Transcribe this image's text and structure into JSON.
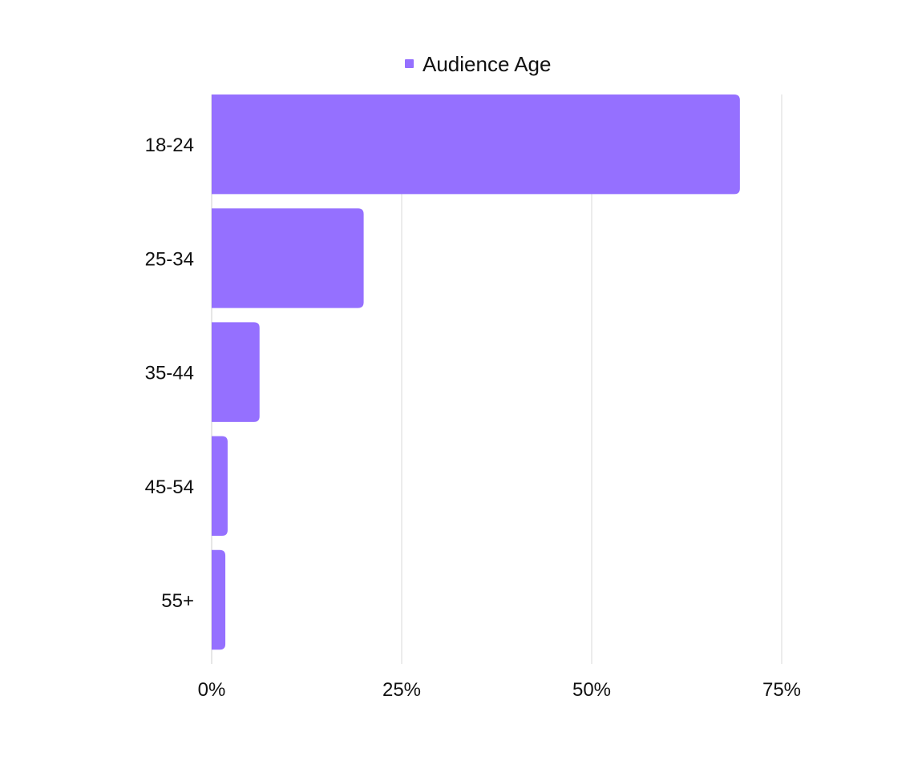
{
  "chart_data": {
    "type": "bar",
    "orientation": "horizontal",
    "categories": [
      "18-24",
      "25-34",
      "35-44",
      "45-54",
      "55+"
    ],
    "series": [
      {
        "name": "Audience Age",
        "values": [
          69.5,
          20,
          6.3,
          2.1,
          1.8
        ],
        "color": "#9570ff"
      }
    ],
    "xlim": [
      0,
      75
    ],
    "x_ticks": [
      0,
      25,
      50,
      75
    ],
    "x_tick_labels": [
      "0%",
      "25%",
      "50%",
      "75%"
    ],
    "grid": "vertical",
    "legend": {
      "position": "top-center",
      "label": "Audience Age"
    }
  }
}
